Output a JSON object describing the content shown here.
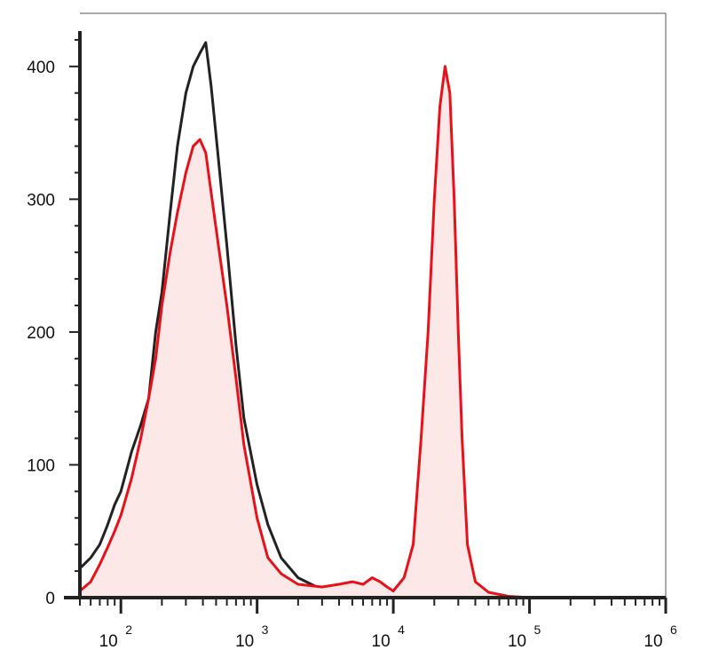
{
  "chart_data": {
    "type": "area",
    "title": "",
    "xlabel": "",
    "ylabel": "",
    "x_scale": "log",
    "xlim": [
      50,
      1000000
    ],
    "ylim": [
      0,
      440
    ],
    "grid": false,
    "legend": "none",
    "x_tick_labels": [
      {
        "x": 100,
        "base": "10",
        "exp": "2"
      },
      {
        "x": 1000,
        "base": "10",
        "exp": "3"
      },
      {
        "x": 10000,
        "base": "10",
        "exp": "4"
      },
      {
        "x": 100000,
        "base": "10",
        "exp": "5"
      },
      {
        "x": 1000000,
        "base": "10",
        "exp": "6"
      }
    ],
    "y_tick_labels": [
      {
        "y": 0,
        "label": "0"
      },
      {
        "y": 100,
        "label": "100"
      },
      {
        "y": 200,
        "label": "200"
      },
      {
        "y": 300,
        "label": "300"
      },
      {
        "y": 400,
        "label": "400"
      }
    ],
    "series": [
      {
        "color": "#222222",
        "fill": "none",
        "points": [
          [
            50,
            22
          ],
          [
            60,
            30
          ],
          [
            70,
            40
          ],
          [
            80,
            55
          ],
          [
            90,
            70
          ],
          [
            100,
            80
          ],
          [
            120,
            110
          ],
          [
            140,
            130
          ],
          [
            160,
            150
          ],
          [
            180,
            200
          ],
          [
            200,
            230
          ],
          [
            230,
            290
          ],
          [
            260,
            340
          ],
          [
            300,
            380
          ],
          [
            340,
            400
          ],
          [
            380,
            410
          ],
          [
            420,
            418
          ],
          [
            460,
            385
          ],
          [
            520,
            330
          ],
          [
            600,
            265
          ],
          [
            700,
            190
          ],
          [
            800,
            135
          ],
          [
            1000,
            85
          ],
          [
            1200,
            55
          ],
          [
            1500,
            30
          ],
          [
            2000,
            15
          ],
          [
            3000,
            6
          ],
          [
            5000,
            2
          ],
          [
            10000,
            1
          ],
          [
            30000,
            0
          ],
          [
            100000,
            0
          ],
          [
            1000000,
            0
          ]
        ]
      },
      {
        "color": "#e8111a",
        "fill": "#fde8e8",
        "points": [
          [
            50,
            5
          ],
          [
            60,
            12
          ],
          [
            70,
            25
          ],
          [
            80,
            38
          ],
          [
            90,
            50
          ],
          [
            100,
            62
          ],
          [
            120,
            90
          ],
          [
            140,
            120
          ],
          [
            160,
            150
          ],
          [
            180,
            180
          ],
          [
            200,
            220
          ],
          [
            230,
            260
          ],
          [
            260,
            290
          ],
          [
            300,
            320
          ],
          [
            340,
            340
          ],
          [
            380,
            345
          ],
          [
            420,
            335
          ],
          [
            460,
            305
          ],
          [
            520,
            265
          ],
          [
            600,
            220
          ],
          [
            700,
            165
          ],
          [
            800,
            115
          ],
          [
            1000,
            60
          ],
          [
            1200,
            30
          ],
          [
            1500,
            18
          ],
          [
            2000,
            10
          ],
          [
            3000,
            8
          ],
          [
            4000,
            10
          ],
          [
            5000,
            12
          ],
          [
            6000,
            10
          ],
          [
            7000,
            15
          ],
          [
            8000,
            12
          ],
          [
            9000,
            8
          ],
          [
            10000,
            5
          ],
          [
            12000,
            15
          ],
          [
            14000,
            40
          ],
          [
            16000,
            120
          ],
          [
            18000,
            200
          ],
          [
            20000,
            300
          ],
          [
            22000,
            370
          ],
          [
            24000,
            400
          ],
          [
            26000,
            380
          ],
          [
            28000,
            300
          ],
          [
            30000,
            200
          ],
          [
            32000,
            120
          ],
          [
            35000,
            40
          ],
          [
            40000,
            12
          ],
          [
            50000,
            4
          ],
          [
            70000,
            1
          ],
          [
            100000,
            0
          ],
          [
            1000000,
            0
          ]
        ]
      }
    ]
  }
}
